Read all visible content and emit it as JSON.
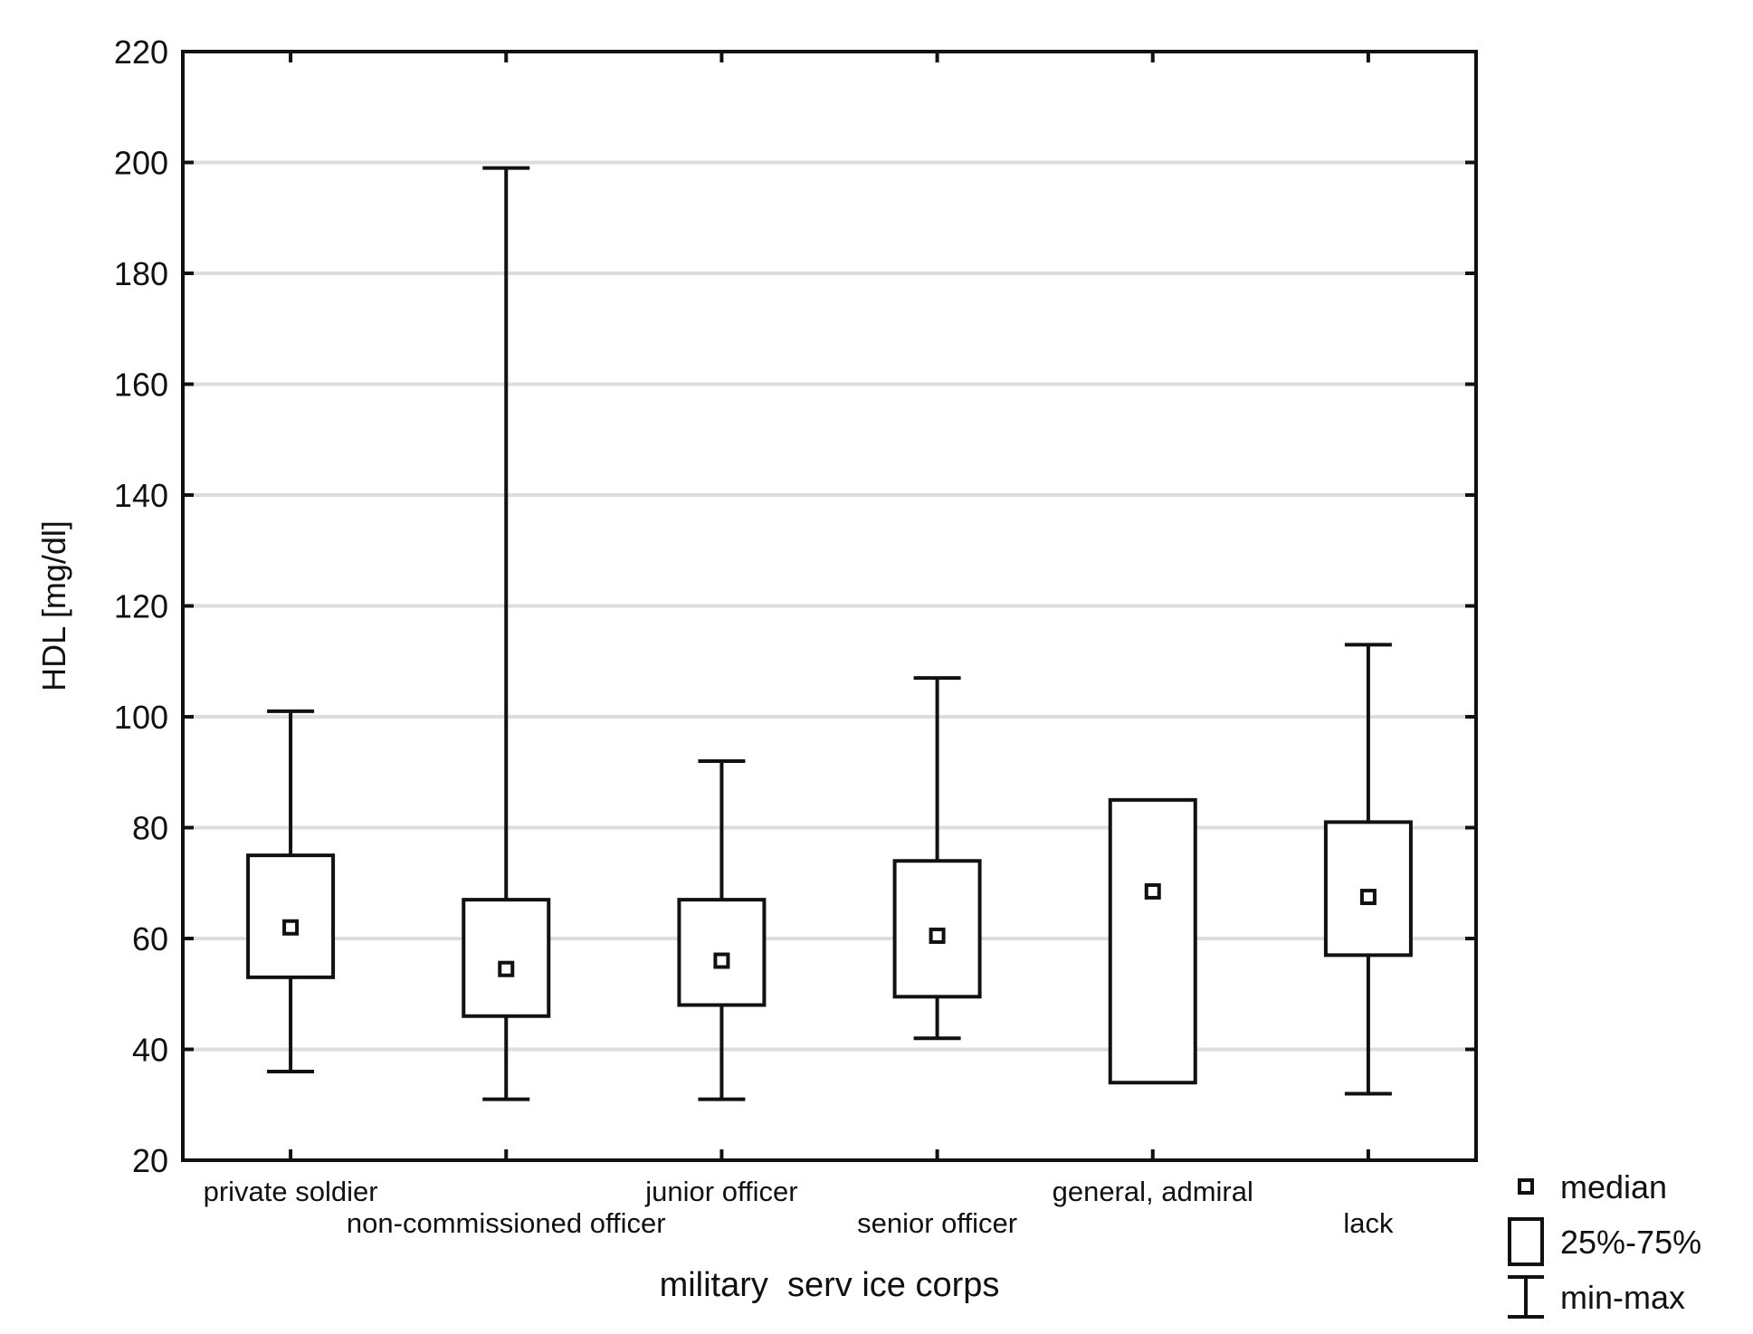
{
  "chart_data": {
    "type": "boxplot",
    "xlabel": "military  serv ice corps",
    "ylabel": "HDL [mg/dl]",
    "ylim": [
      20,
      220
    ],
    "yticks": [
      20,
      40,
      60,
      80,
      100,
      120,
      140,
      160,
      180,
      200,
      220
    ],
    "grid": "horizontal",
    "legend_position": "bottom-right, outside plot",
    "legend": [
      {
        "symbol": "median-marker",
        "label": "median"
      },
      {
        "symbol": "box",
        "label": "25%-75%"
      },
      {
        "symbol": "whisker",
        "label": "min-max"
      }
    ],
    "categories": [
      "private soldier",
      "non-commissioned officer",
      "junior officer",
      "senior officer",
      "general, admiral",
      "lack"
    ],
    "series": [
      {
        "category": "private soldier",
        "min": 36,
        "q1": 53,
        "median": 62,
        "q3": 75,
        "max": 101
      },
      {
        "category": "non-commissioned officer",
        "min": 31,
        "q1": 46,
        "median": 54.5,
        "q3": 67,
        "max": 199
      },
      {
        "category": "junior officer",
        "min": 31,
        "q1": 48,
        "median": 56,
        "q3": 67,
        "max": 92
      },
      {
        "category": "senior officer",
        "min": 42,
        "q1": 49.5,
        "median": 60.5,
        "q3": 74,
        "max": 107
      },
      {
        "category": "general, admiral",
        "min": 34,
        "q1": 34,
        "median": 68.5,
        "q3": 85,
        "max": 85
      },
      {
        "category": "lack",
        "min": 32,
        "q1": 57,
        "median": 67.5,
        "q3": 81,
        "max": 113
      }
    ],
    "colors": {
      "ink": "#111111",
      "grid": "#dddddd",
      "background": "#ffffff"
    }
  }
}
